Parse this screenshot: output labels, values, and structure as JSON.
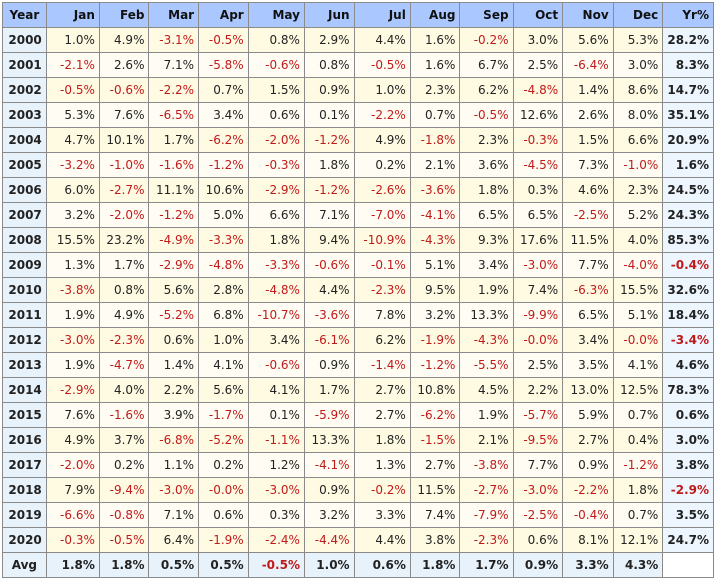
{
  "table": {
    "headers": [
      "Year",
      "Jan",
      "Feb",
      "Mar",
      "Apr",
      "May",
      "Jun",
      "Jul",
      "Aug",
      "Sep",
      "Oct",
      "Nov",
      "Dec",
      "Yr%"
    ],
    "rows": [
      {
        "year": "2000",
        "months": [
          "1.0%",
          "4.9%",
          "-3.1%",
          "-0.5%",
          "0.8%",
          "2.9%",
          "4.4%",
          "1.6%",
          "-0.2%",
          "3.0%",
          "5.6%",
          "5.3%"
        ],
        "yr": "28.2%"
      },
      {
        "year": "2001",
        "months": [
          "-2.1%",
          "2.6%",
          "7.1%",
          "-5.8%",
          "-0.6%",
          "0.8%",
          "-0.5%",
          "1.6%",
          "6.7%",
          "2.5%",
          "-6.4%",
          "3.0%"
        ],
        "yr": "8.3%"
      },
      {
        "year": "2002",
        "months": [
          "-0.5%",
          "-0.6%",
          "-2.2%",
          "0.7%",
          "1.5%",
          "0.9%",
          "1.0%",
          "2.3%",
          "6.2%",
          "-4.8%",
          "1.4%",
          "8.6%"
        ],
        "yr": "14.7%"
      },
      {
        "year": "2003",
        "months": [
          "5.3%",
          "7.6%",
          "-6.5%",
          "3.4%",
          "0.6%",
          "0.1%",
          "-2.2%",
          "0.7%",
          "-0.5%",
          "12.6%",
          "2.6%",
          "8.0%"
        ],
        "yr": "35.1%"
      },
      {
        "year": "2004",
        "months": [
          "4.7%",
          "10.1%",
          "1.7%",
          "-6.2%",
          "-2.0%",
          "-1.2%",
          "4.9%",
          "-1.8%",
          "2.3%",
          "-0.3%",
          "1.5%",
          "6.6%"
        ],
        "yr": "20.9%"
      },
      {
        "year": "2005",
        "months": [
          "-3.2%",
          "-1.0%",
          "-1.6%",
          "-1.2%",
          "-0.3%",
          "1.8%",
          "0.2%",
          "2.1%",
          "3.6%",
          "-4.5%",
          "7.3%",
          "-1.0%"
        ],
        "yr": "1.6%"
      },
      {
        "year": "2006",
        "months": [
          "6.0%",
          "-2.7%",
          "11.1%",
          "10.6%",
          "-2.9%",
          "-1.2%",
          "-2.6%",
          "-3.6%",
          "1.8%",
          "0.3%",
          "4.6%",
          "2.3%"
        ],
        "yr": "24.5%"
      },
      {
        "year": "2007",
        "months": [
          "3.2%",
          "-2.0%",
          "-1.2%",
          "5.0%",
          "6.6%",
          "7.1%",
          "-7.0%",
          "-4.1%",
          "6.5%",
          "6.5%",
          "-2.5%",
          "5.2%"
        ],
        "yr": "24.3%"
      },
      {
        "year": "2008",
        "months": [
          "15.5%",
          "23.2%",
          "-4.9%",
          "-3.3%",
          "1.8%",
          "9.4%",
          "-10.9%",
          "-4.3%",
          "9.3%",
          "17.6%",
          "11.5%",
          "4.0%"
        ],
        "yr": "85.3%"
      },
      {
        "year": "2009",
        "months": [
          "1.3%",
          "1.7%",
          "-2.9%",
          "-4.8%",
          "-3.3%",
          "-0.6%",
          "-0.1%",
          "5.1%",
          "3.4%",
          "-3.0%",
          "7.7%",
          "-4.0%"
        ],
        "yr": "-0.4%"
      },
      {
        "year": "2010",
        "months": [
          "-3.8%",
          "0.8%",
          "5.6%",
          "2.8%",
          "-4.8%",
          "4.4%",
          "-2.3%",
          "9.5%",
          "1.9%",
          "7.4%",
          "-6.3%",
          "15.5%"
        ],
        "yr": "32.6%"
      },
      {
        "year": "2011",
        "months": [
          "1.9%",
          "4.9%",
          "-5.2%",
          "6.8%",
          "-10.7%",
          "-3.6%",
          "7.8%",
          "3.2%",
          "13.3%",
          "-9.9%",
          "6.5%",
          "5.1%"
        ],
        "yr": "18.4%"
      },
      {
        "year": "2012",
        "months": [
          "-3.0%",
          "-2.3%",
          "0.6%",
          "1.0%",
          "3.4%",
          "-6.1%",
          "6.2%",
          "-1.9%",
          "-4.3%",
          "-0.0%",
          "3.4%",
          "-0.0%"
        ],
        "yr": "-3.4%"
      },
      {
        "year": "2013",
        "months": [
          "1.9%",
          "-4.7%",
          "1.4%",
          "4.1%",
          "-0.6%",
          "0.9%",
          "-1.4%",
          "-1.2%",
          "-5.5%",
          "2.5%",
          "3.5%",
          "4.1%"
        ],
        "yr": "4.6%"
      },
      {
        "year": "2014",
        "months": [
          "-2.9%",
          "4.0%",
          "2.2%",
          "5.6%",
          "4.1%",
          "1.7%",
          "2.7%",
          "10.8%",
          "4.5%",
          "2.2%",
          "13.0%",
          "12.5%"
        ],
        "yr": "78.3%"
      },
      {
        "year": "2015",
        "months": [
          "7.6%",
          "-1.6%",
          "3.9%",
          "-1.7%",
          "0.1%",
          "-5.9%",
          "2.7%",
          "-6.2%",
          "1.9%",
          "-5.7%",
          "5.9%",
          "0.7%"
        ],
        "yr": "0.6%"
      },
      {
        "year": "2016",
        "months": [
          "4.9%",
          "3.7%",
          "-6.8%",
          "-5.2%",
          "-1.1%",
          "13.3%",
          "1.8%",
          "-1.5%",
          "2.1%",
          "-9.5%",
          "2.7%",
          "0.4%"
        ],
        "yr": "3.0%"
      },
      {
        "year": "2017",
        "months": [
          "-2.0%",
          "0.2%",
          "1.1%",
          "0.2%",
          "1.2%",
          "-4.1%",
          "1.3%",
          "2.7%",
          "-3.8%",
          "7.7%",
          "0.9%",
          "-1.2%"
        ],
        "yr": "3.8%"
      },
      {
        "year": "2018",
        "months": [
          "7.9%",
          "-9.4%",
          "-3.0%",
          "-0.0%",
          "-3.0%",
          "0.9%",
          "-0.2%",
          "11.5%",
          "-2.7%",
          "-3.0%",
          "-2.2%",
          "1.8%"
        ],
        "yr": "-2.9%"
      },
      {
        "year": "2019",
        "months": [
          "-6.6%",
          "-0.8%",
          "7.1%",
          "0.6%",
          "0.3%",
          "3.2%",
          "3.3%",
          "7.4%",
          "-7.9%",
          "-2.5%",
          "-0.4%",
          "0.7%"
        ],
        "yr": "3.5%"
      },
      {
        "year": "2020",
        "months": [
          "-0.3%",
          "-0.5%",
          "6.4%",
          "-1.9%",
          "-2.4%",
          "-4.4%",
          "4.4%",
          "3.8%",
          "-2.3%",
          "0.6%",
          "8.1%",
          "12.1%"
        ],
        "yr": "24.7%"
      }
    ],
    "avg": {
      "label": "Avg",
      "months": [
        "1.8%",
        "1.8%",
        "0.5%",
        "0.5%",
        "-0.5%",
        "1.0%",
        "0.6%",
        "1.8%",
        "1.7%",
        "0.9%",
        "3.3%",
        "4.3%"
      ],
      "yr": ""
    }
  },
  "colors": {
    "header_bg": "#aac8ff",
    "negative_text": "#c01a1a",
    "cell_bg": "#fffbe3",
    "year_bg": "#e8f2fb"
  }
}
